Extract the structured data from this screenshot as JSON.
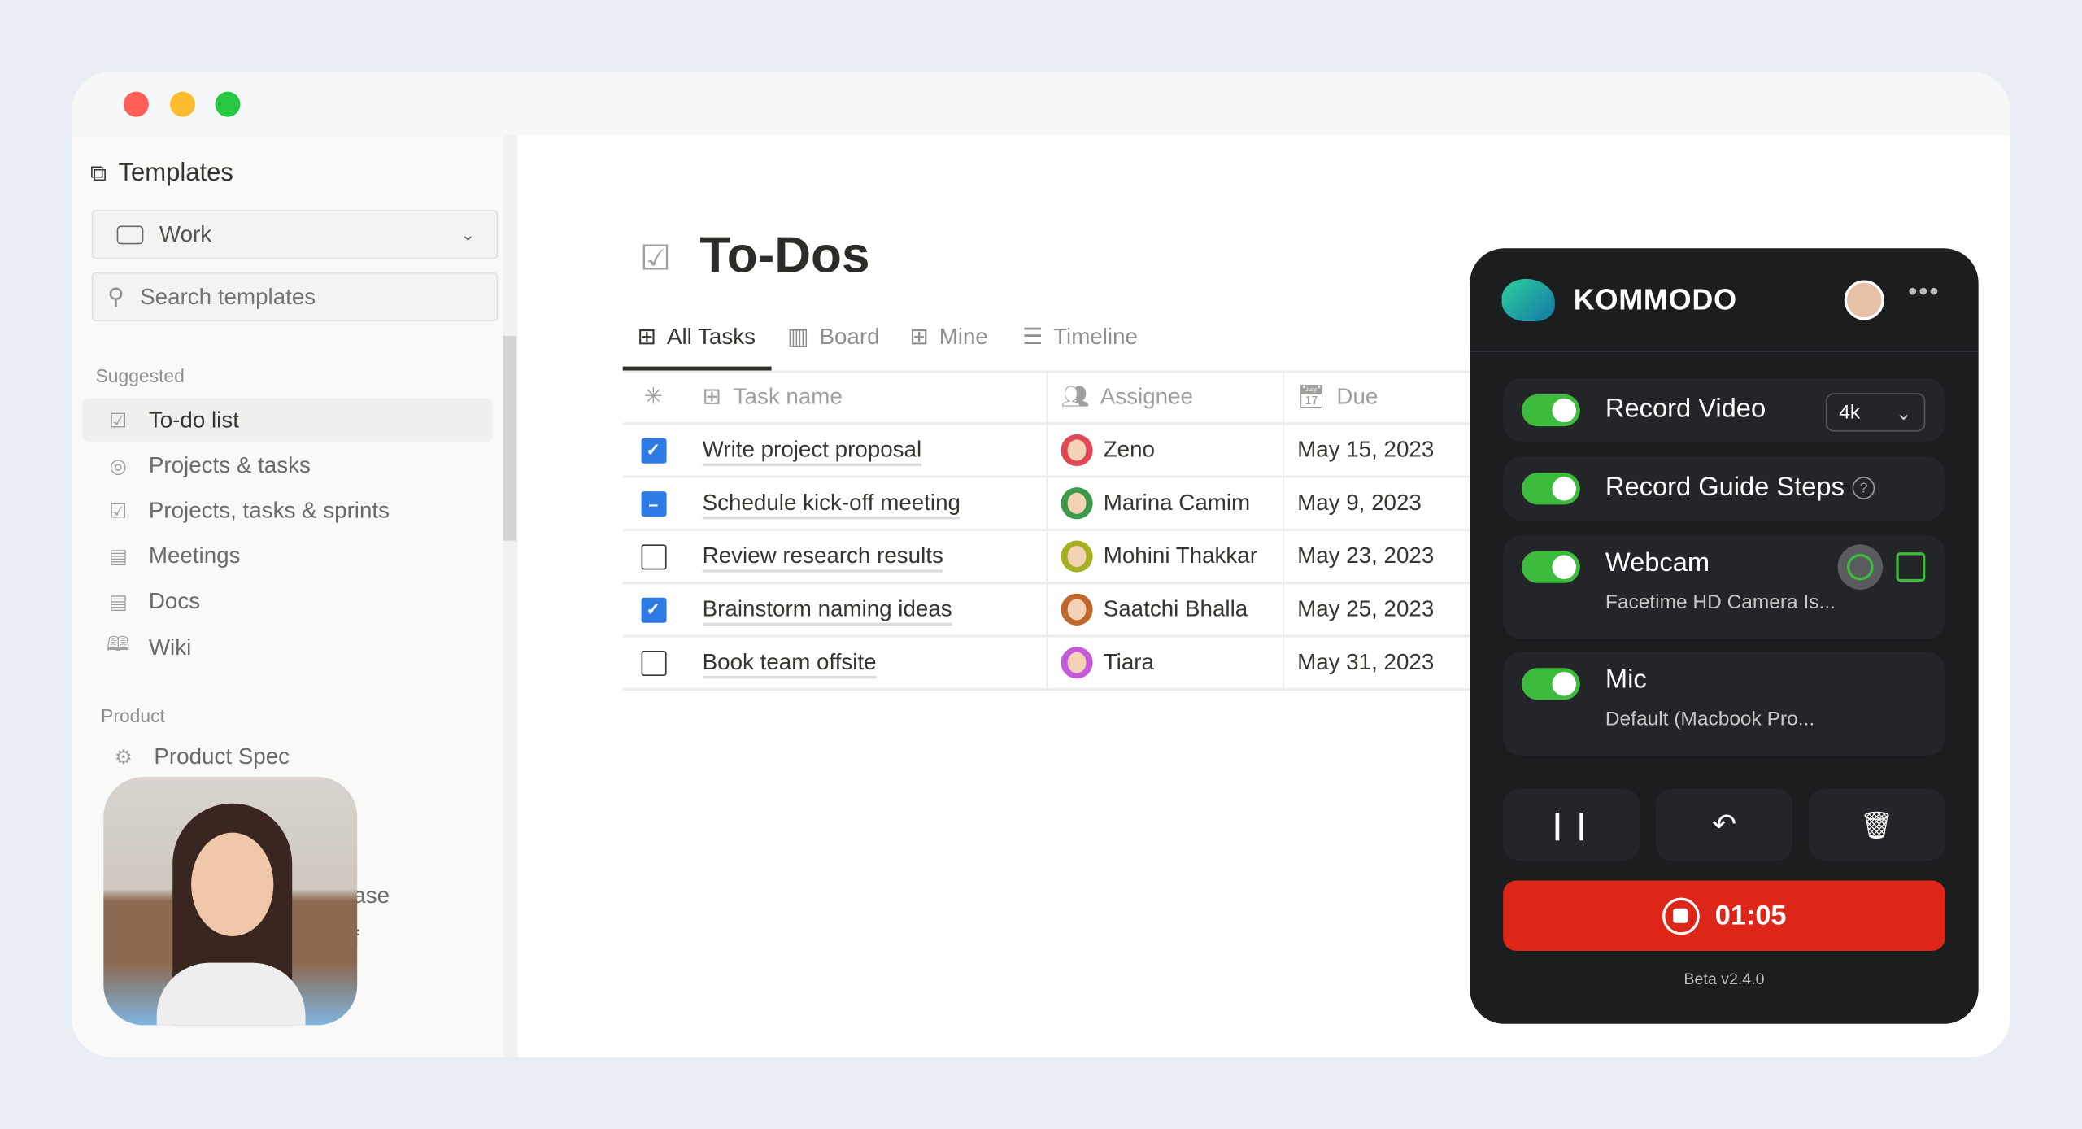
{
  "sidebar": {
    "title": "Templates",
    "workspace": "Work",
    "search_placeholder": "Search templates",
    "suggested_label": "Suggested",
    "items": [
      {
        "label": "To-do list",
        "icon": "checkbox-icon"
      },
      {
        "label": "Projects & tasks",
        "icon": "target-icon"
      },
      {
        "label": "Projects, tasks & sprints",
        "icon": "checkbox-icon"
      },
      {
        "label": "Meetings",
        "icon": "doc-icon"
      },
      {
        "label": "Docs",
        "icon": "doc-icon"
      },
      {
        "label": "Wiki",
        "icon": "book-icon"
      }
    ],
    "product_label": "Product",
    "product_items": [
      {
        "label": "Product Spec",
        "icon": "gear-icon"
      }
    ],
    "hidden_fragments": [
      "ase",
      "f"
    ]
  },
  "page": {
    "title": "To-Dos",
    "tabs": [
      {
        "label": "All Tasks",
        "active": true
      },
      {
        "label": "Board"
      },
      {
        "label": "Mine"
      },
      {
        "label": "Timeline"
      }
    ],
    "columns": [
      "Task name",
      "Assignee",
      "Due"
    ],
    "rows": [
      {
        "task": "Write project proposal",
        "state": "checked",
        "assignee": "Zeno",
        "avatar_color": "#e0485a",
        "due": "May 15, 2023"
      },
      {
        "task": "Schedule kick-off meeting",
        "state": "indeterminate",
        "assignee": "Marina Camim",
        "avatar_color": "#3b9a4a",
        "due": "May 9, 2023"
      },
      {
        "task": "Review research results",
        "state": "unchecked",
        "assignee": "Mohini Thakkar",
        "avatar_color": "#a7b020",
        "due": "May 23, 2023"
      },
      {
        "task": "Brainstorm naming ideas",
        "state": "checked",
        "assignee": "Saatchi Bhalla",
        "avatar_color": "#c0672a",
        "due": "May 25, 2023"
      },
      {
        "task": "Book team offsite",
        "state": "unchecked",
        "assignee": "Tiara",
        "avatar_color": "#c45ad8",
        "due": "May 31, 2023"
      }
    ]
  },
  "kommodo": {
    "brand": "KOMMODO",
    "record_video": {
      "label": "Record Video",
      "on": true,
      "quality": "4k"
    },
    "guide_steps": {
      "label": "Record Guide Steps",
      "on": true
    },
    "webcam": {
      "label": "Webcam",
      "on": true,
      "device": "Facetime HD Camera Is..."
    },
    "mic": {
      "label": "Mic",
      "on": true,
      "device": "Default (Macbook Pro..."
    },
    "timer": "01:05",
    "version": "Beta v2.4.0",
    "colors": {
      "accent": "#3dbb3d",
      "record": "#dd2518",
      "panel": "#1c1d1f"
    }
  }
}
